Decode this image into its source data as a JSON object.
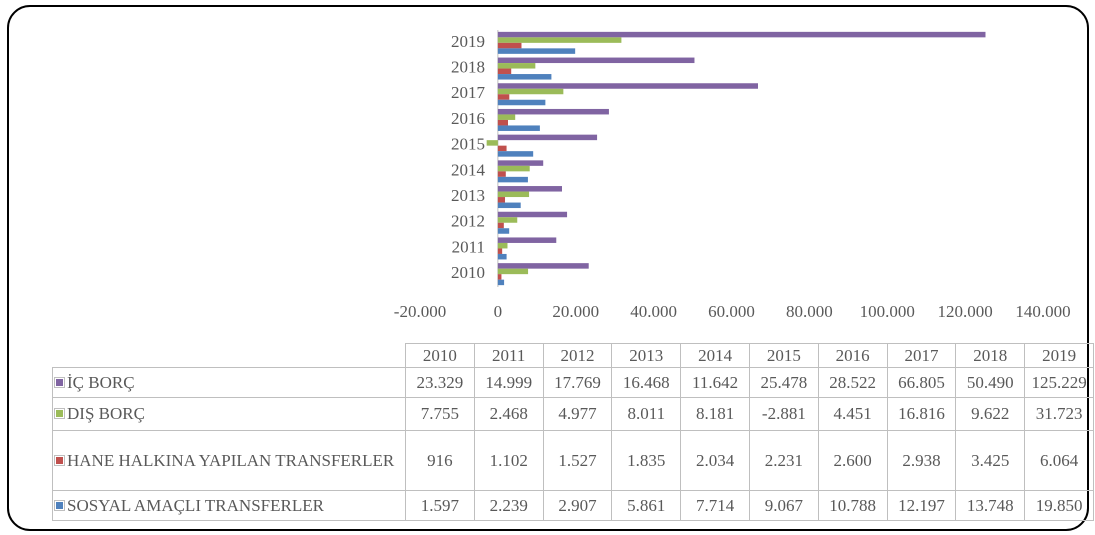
{
  "chart_data": {
    "type": "hbar",
    "categories": [
      "2010",
      "2011",
      "2012",
      "2013",
      "2014",
      "2015",
      "2016",
      "2017",
      "2018",
      "2019"
    ],
    "series": [
      {
        "name": "İÇ BORÇ",
        "color": "#8064a2",
        "values": [
          23329,
          14999,
          17769,
          16468,
          11642,
          25478,
          28522,
          66805,
          50490,
          125229
        ],
        "value_labels": [
          "23.329",
          "14.999",
          "17.769",
          "16.468",
          "11.642",
          "25.478",
          "28.522",
          "66.805",
          "50.490",
          "125.229"
        ]
      },
      {
        "name": "DIŞ BORÇ",
        "color": "#9bbb59",
        "values": [
          7755,
          2468,
          4977,
          8011,
          8181,
          -2881,
          4451,
          16816,
          9622,
          31723
        ],
        "value_labels": [
          "7.755",
          "2.468",
          "4.977",
          "8.011",
          "8.181",
          "-2.881",
          "4.451",
          "16.816",
          "9.622",
          "31.723"
        ]
      },
      {
        "name": "HANE HALKINA YAPILAN TRANSFERLER",
        "color": "#c0504d",
        "values": [
          916,
          1102,
          1527,
          1835,
          2034,
          2231,
          2600,
          2938,
          3425,
          6064
        ],
        "value_labels": [
          "916",
          "1.102",
          "1.527",
          "1.835",
          "2.034",
          "2.231",
          "2.600",
          "2.938",
          "3.425",
          "6.064"
        ]
      },
      {
        "name": "SOSYAL AMAÇLI TRANSFERLER",
        "color": "#4f81bd",
        "values": [
          1597,
          2239,
          2907,
          5861,
          7714,
          9067,
          10788,
          12197,
          13748,
          19850
        ],
        "value_labels": [
          "1.597",
          "2.239",
          "2.907",
          "5.861",
          "7.714",
          "9.067",
          "10.788",
          "12.197",
          "13.748",
          "19.850"
        ]
      }
    ],
    "xlim": [
      -20000,
      140000
    ],
    "xticks": [
      {
        "value": -20000,
        "label": "-20.000"
      },
      0,
      {
        "value": 20000,
        "label": "20.000"
      },
      {
        "value": 40000,
        "label": "40.000"
      },
      {
        "value": 60000,
        "label": "60.000"
      },
      {
        "value": 80000,
        "label": "80.000"
      },
      {
        "value": 100000,
        "label": "100.000"
      },
      {
        "value": 120000,
        "label": "120.000"
      },
      {
        "value": 140000,
        "label": "140.000"
      }
    ],
    "grid": false
  }
}
